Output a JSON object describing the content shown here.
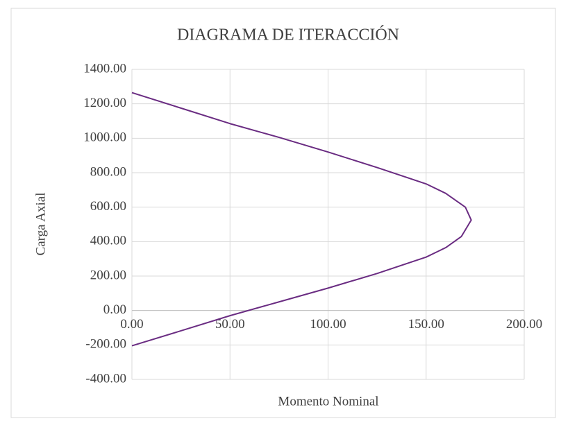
{
  "chart_data": {
    "type": "line",
    "title": "DIAGRAMA DE ITERACCIÓN",
    "x_label": "Momento Nominal",
    "y_label": "Carga Axial",
    "x": [
      0,
      25,
      50,
      75,
      100,
      125,
      150,
      160,
      168,
      173,
      170,
      160,
      150,
      125,
      100,
      75,
      50,
      25,
      0
    ],
    "series": [
      {
        "name": "Carga Axial",
        "color": "#6a2c82",
        "values": [
          -205,
          -118,
          -30,
          50,
          130,
          215,
          310,
          365,
          430,
          525,
          600,
          680,
          735,
          830,
          920,
          1005,
          1085,
          1175,
          1265
        ]
      }
    ],
    "xlim": [
      0,
      200
    ],
    "ylim": [
      -400,
      1400
    ],
    "xticks": [
      {
        "value": 0,
        "label": "0.00"
      },
      {
        "value": 50,
        "label": "50.00"
      },
      {
        "value": 100,
        "label": "100.00"
      },
      {
        "value": 150,
        "label": "150.00"
      },
      {
        "value": 200,
        "label": "200.00"
      }
    ],
    "yticks": [
      {
        "value": -400,
        "label": "-400.00"
      },
      {
        "value": -200,
        "label": "-200.00"
      },
      {
        "value": 0,
        "label": "0.00"
      },
      {
        "value": 200,
        "label": "200.00"
      },
      {
        "value": 400,
        "label": "400.00"
      },
      {
        "value": 600,
        "label": "600.00"
      },
      {
        "value": 800,
        "label": "800.00"
      },
      {
        "value": 1000,
        "label": "1000.00"
      },
      {
        "value": 1200,
        "label": "1200.00"
      },
      {
        "value": 1400,
        "label": "1400.00"
      }
    ],
    "grid": true
  }
}
